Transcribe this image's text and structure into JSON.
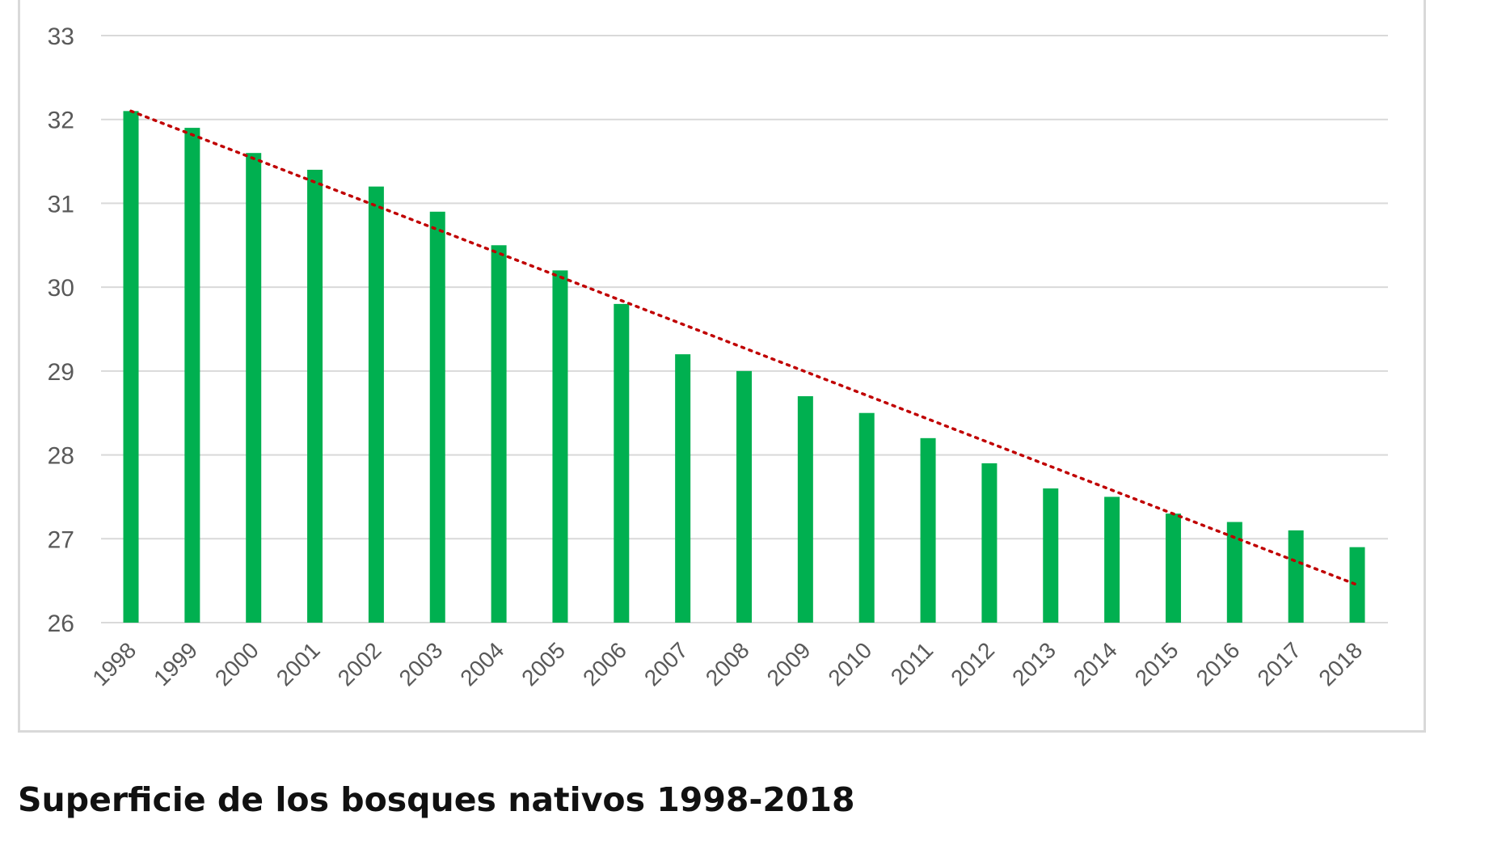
{
  "caption": "Superficie de los bosques nativos 1998-2018",
  "chart_data": {
    "type": "bar",
    "categories": [
      "1998",
      "1999",
      "2000",
      "2001",
      "2002",
      "2003",
      "2004",
      "2005",
      "2006",
      "2007",
      "2008",
      "2009",
      "2010",
      "2011",
      "2012",
      "2013",
      "2014",
      "2015",
      "2016",
      "2017",
      "2018"
    ],
    "values": [
      32.1,
      31.9,
      31.6,
      31.4,
      31.2,
      30.9,
      30.5,
      30.2,
      29.8,
      29.2,
      29.0,
      28.7,
      28.5,
      28.2,
      27.9,
      27.6,
      27.5,
      27.3,
      27.2,
      27.1,
      26.9
    ],
    "ylim": [
      26,
      33
    ],
    "y_ticks": [
      "26",
      "27",
      "28",
      "29",
      "30",
      "31",
      "32",
      "33"
    ],
    "trendline": {
      "type": "linear",
      "style": "dotted",
      "start_value": 32.1,
      "end_value": 26.45
    },
    "grid": true,
    "legend": "none",
    "colors": {
      "bar": "#00b050",
      "trendline": "#c00000",
      "grid": "#d9d9d9",
      "tick_text": "#595959"
    }
  }
}
